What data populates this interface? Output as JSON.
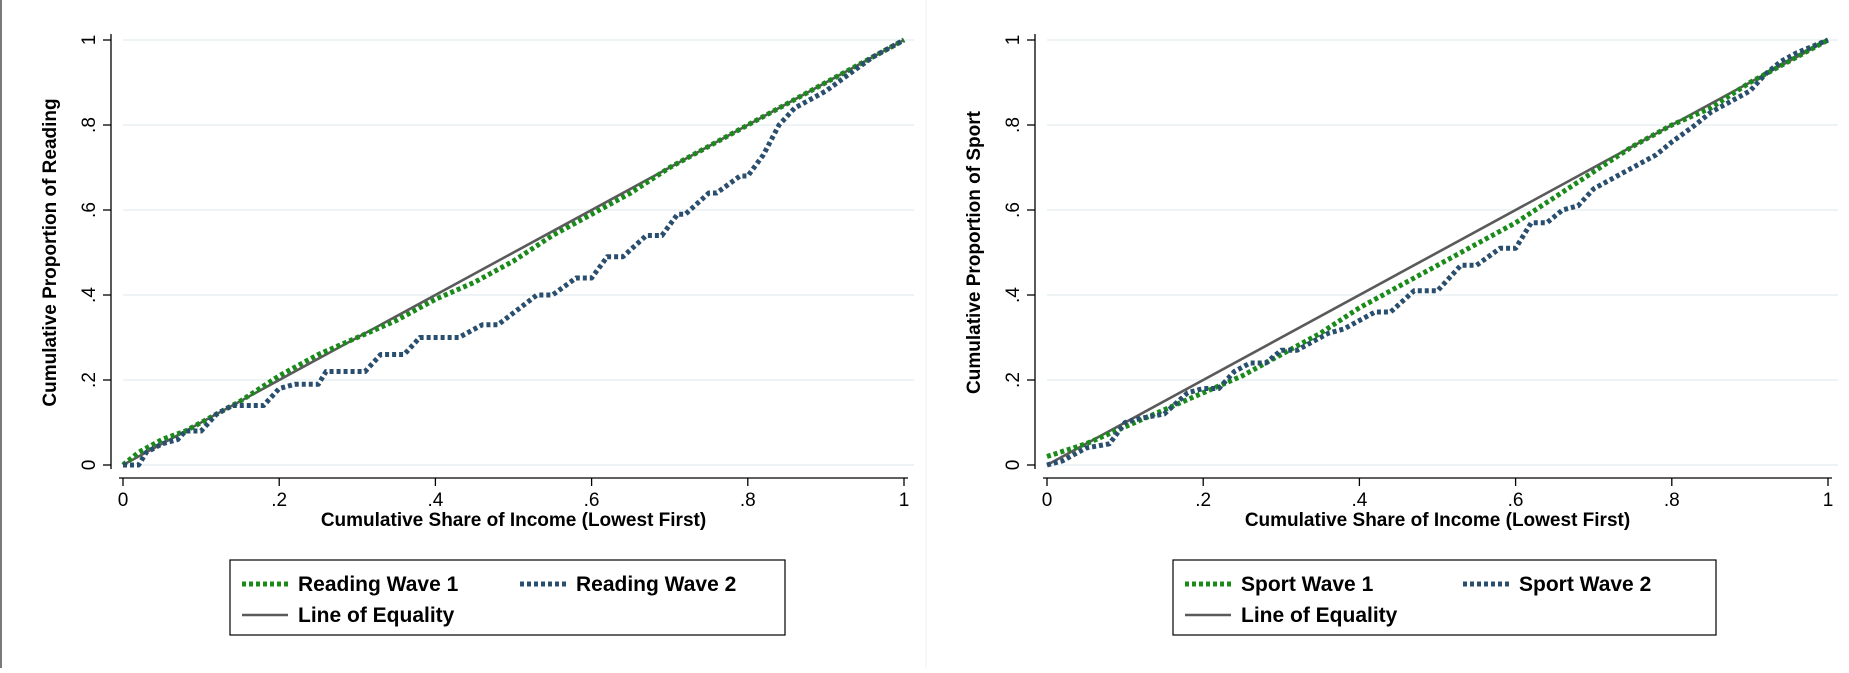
{
  "colors": {
    "wave1": "#1a8a1a",
    "wave2": "#2a4e6e",
    "equality": "#5a5a5a",
    "grid": "#e3eef0",
    "axis": "#000000"
  },
  "chart_data": [
    {
      "type": "line",
      "title": "",
      "xlabel": "Cumulative Share of Income (Lowest First)",
      "ylabel": "Cumulative Proportion of Reading",
      "xlim": [
        0,
        1
      ],
      "ylim": [
        0,
        1
      ],
      "x_ticks": [
        "0",
        ".2",
        ".4",
        ".6",
        ".8",
        "1"
      ],
      "y_ticks": [
        "0",
        ".2",
        ".4",
        ".6",
        ".8",
        "1"
      ],
      "grid": true,
      "legend_position": "bottom",
      "series": [
        {
          "name": "Reading Wave 1",
          "style": "dotted",
          "x": [
            0.0,
            0.02,
            0.05,
            0.08,
            0.1,
            0.15,
            0.2,
            0.25,
            0.3,
            0.35,
            0.4,
            0.45,
            0.5,
            0.55,
            0.6,
            0.65,
            0.7,
            0.75,
            0.8,
            0.85,
            0.9,
            0.95,
            1.0
          ],
          "y": [
            0.0,
            0.03,
            0.06,
            0.08,
            0.1,
            0.15,
            0.21,
            0.26,
            0.3,
            0.34,
            0.39,
            0.43,
            0.48,
            0.54,
            0.59,
            0.64,
            0.7,
            0.75,
            0.8,
            0.85,
            0.9,
            0.95,
            1.0
          ]
        },
        {
          "name": "Reading Wave 2",
          "style": "dotted",
          "x": [
            0.0,
            0.02,
            0.03,
            0.05,
            0.07,
            0.08,
            0.1,
            0.12,
            0.14,
            0.16,
            0.18,
            0.2,
            0.22,
            0.25,
            0.26,
            0.28,
            0.31,
            0.33,
            0.36,
            0.38,
            0.4,
            0.43,
            0.46,
            0.48,
            0.53,
            0.55,
            0.58,
            0.6,
            0.62,
            0.64,
            0.67,
            0.69,
            0.71,
            0.72,
            0.75,
            0.76,
            0.79,
            0.8,
            0.82,
            0.84,
            0.86,
            0.88,
            0.9,
            0.93,
            0.96,
            1.0
          ],
          "y": [
            0.0,
            0.0,
            0.03,
            0.05,
            0.06,
            0.08,
            0.08,
            0.12,
            0.14,
            0.14,
            0.14,
            0.18,
            0.19,
            0.19,
            0.22,
            0.22,
            0.22,
            0.26,
            0.26,
            0.3,
            0.3,
            0.3,
            0.33,
            0.33,
            0.4,
            0.4,
            0.44,
            0.44,
            0.49,
            0.49,
            0.54,
            0.54,
            0.59,
            0.59,
            0.64,
            0.64,
            0.68,
            0.68,
            0.73,
            0.8,
            0.84,
            0.86,
            0.88,
            0.92,
            0.96,
            1.0
          ]
        },
        {
          "name": "Line of Equality",
          "style": "solid",
          "x": [
            0,
            1
          ],
          "y": [
            0,
            1
          ]
        }
      ]
    },
    {
      "type": "line",
      "title": "",
      "xlabel": "Cumulative Share of Income (Lowest First)",
      "ylabel": "Cumulative Proportion of Sport",
      "xlim": [
        0,
        1
      ],
      "ylim": [
        0,
        1
      ],
      "x_ticks": [
        "0",
        ".2",
        ".4",
        ".6",
        ".8",
        "1"
      ],
      "y_ticks": [
        "0",
        ".2",
        ".4",
        ".6",
        ".8",
        "1"
      ],
      "grid": true,
      "legend_position": "bottom",
      "series": [
        {
          "name": "Sport Wave 1",
          "style": "dotted",
          "x": [
            0.0,
            0.05,
            0.1,
            0.15,
            0.2,
            0.25,
            0.3,
            0.35,
            0.4,
            0.45,
            0.5,
            0.55,
            0.6,
            0.65,
            0.7,
            0.75,
            0.8,
            0.85,
            0.9,
            0.95,
            1.0
          ],
          "y": [
            0.02,
            0.05,
            0.09,
            0.13,
            0.17,
            0.21,
            0.26,
            0.31,
            0.37,
            0.42,
            0.47,
            0.52,
            0.57,
            0.63,
            0.69,
            0.75,
            0.8,
            0.84,
            0.9,
            0.95,
            1.0
          ]
        },
        {
          "name": "Sport Wave 2",
          "style": "dotted",
          "x": [
            0.0,
            0.02,
            0.05,
            0.08,
            0.1,
            0.12,
            0.15,
            0.18,
            0.2,
            0.22,
            0.24,
            0.26,
            0.28,
            0.3,
            0.32,
            0.36,
            0.38,
            0.42,
            0.44,
            0.47,
            0.5,
            0.53,
            0.55,
            0.58,
            0.6,
            0.62,
            0.64,
            0.66,
            0.68,
            0.7,
            0.73,
            0.75,
            0.78,
            0.8,
            0.83,
            0.85,
            0.88,
            0.9,
            0.92,
            0.94,
            0.96,
            1.0
          ],
          "y": [
            0.0,
            0.01,
            0.04,
            0.05,
            0.1,
            0.11,
            0.12,
            0.17,
            0.18,
            0.18,
            0.22,
            0.24,
            0.24,
            0.27,
            0.27,
            0.31,
            0.32,
            0.36,
            0.36,
            0.41,
            0.41,
            0.47,
            0.47,
            0.51,
            0.51,
            0.57,
            0.57,
            0.6,
            0.61,
            0.65,
            0.68,
            0.7,
            0.73,
            0.76,
            0.8,
            0.83,
            0.86,
            0.88,
            0.92,
            0.95,
            0.97,
            1.0
          ]
        },
        {
          "name": "Line of Equality",
          "style": "solid",
          "x": [
            0,
            1
          ],
          "y": [
            0,
            1
          ]
        }
      ]
    }
  ]
}
